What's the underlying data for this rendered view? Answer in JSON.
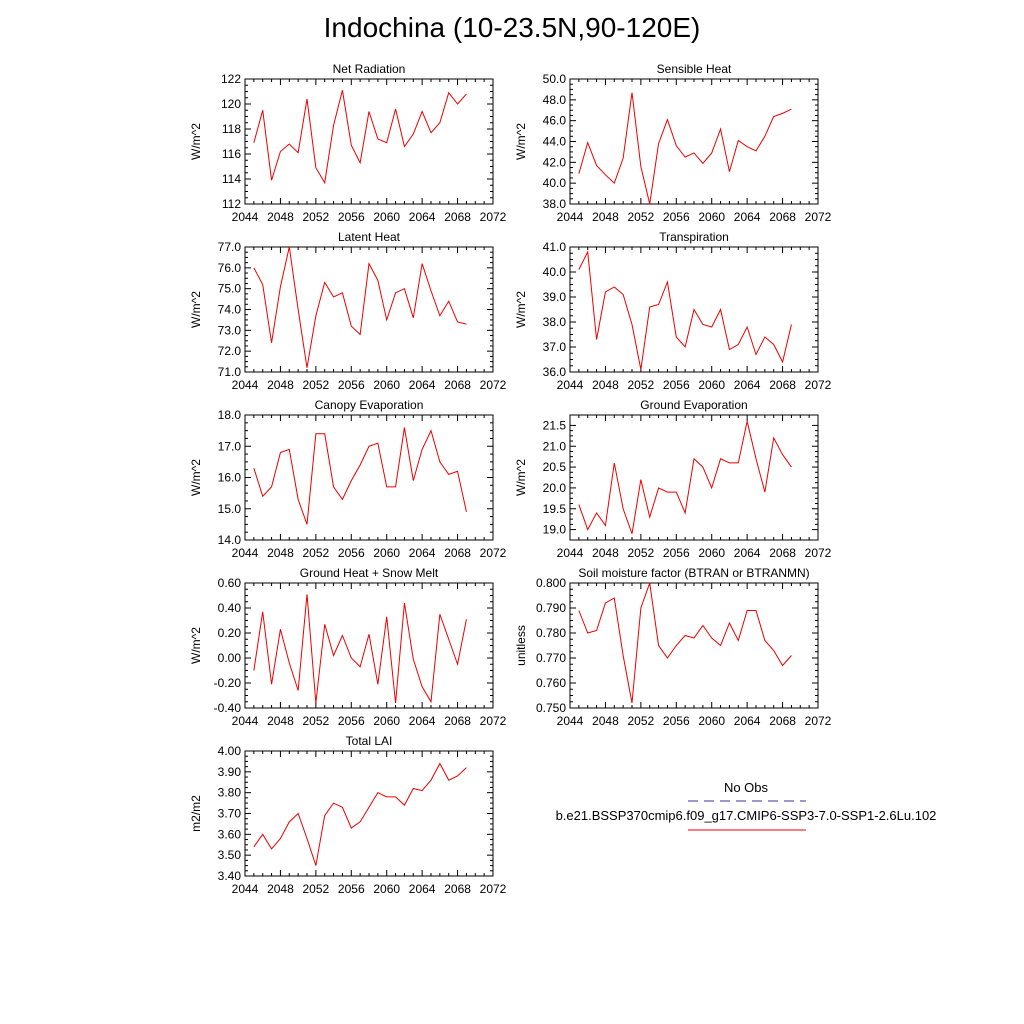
{
  "title": "Indochina (10-23.5N,90-120E)",
  "legend": {
    "obs_label": "No Obs",
    "obs_color": "#3333aa",
    "case_label": "b.e21.BSSP370cmip6.f09_g17.CMIP6-SSP3-7.0-SSP1-2.6Lu.102",
    "case_color": "#ee0000"
  },
  "chart_data": [
    {
      "type": "line",
      "title": "Net Radiation",
      "ylabel": "W/m^2",
      "xlim": [
        2044,
        2072
      ],
      "ylim": [
        112,
        122
      ],
      "xticks": [
        "2044",
        "2048",
        "2052",
        "2056",
        "2060",
        "2064",
        "2068",
        "2072"
      ],
      "yticks": [
        "112",
        "114",
        "116",
        "118",
        "120",
        "122"
      ],
      "x": [
        2045,
        2046,
        2047,
        2048,
        2049,
        2050,
        2051,
        2052,
        2053,
        2054,
        2055,
        2056,
        2057,
        2058,
        2059,
        2060,
        2061,
        2062,
        2063,
        2064,
        2065,
        2066,
        2067,
        2068,
        2069
      ],
      "series": [
        {
          "values": [
            116.9,
            119.5,
            113.9,
            116.2,
            116.8,
            116.1,
            120.4,
            114.9,
            113.7,
            118.3,
            121.1,
            116.7,
            115.3,
            119.4,
            117.2,
            116.9,
            119.6,
            116.6,
            117.6,
            119.4,
            117.7,
            118.5,
            120.9,
            120.0,
            120.8
          ]
        }
      ]
    },
    {
      "type": "line",
      "title": "Sensible Heat",
      "ylabel": "W/m^2",
      "xlim": [
        2044,
        2072
      ],
      "ylim": [
        38.0,
        50.0
      ],
      "xticks": [
        "2044",
        "2048",
        "2052",
        "2056",
        "2060",
        "2064",
        "2068",
        "2072"
      ],
      "yticks": [
        "38.0",
        "40.0",
        "42.0",
        "44.0",
        "46.0",
        "48.0",
        "50.0"
      ],
      "x": [
        2045,
        2046,
        2047,
        2048,
        2049,
        2050,
        2051,
        2052,
        2053,
        2054,
        2055,
        2056,
        2057,
        2058,
        2059,
        2060,
        2061,
        2062,
        2063,
        2064,
        2065,
        2066,
        2067,
        2068,
        2069
      ],
      "series": [
        {
          "values": [
            40.9,
            43.9,
            41.7,
            40.8,
            40.0,
            42.4,
            48.7,
            41.6,
            38.0,
            43.8,
            46.1,
            43.6,
            42.5,
            42.9,
            41.9,
            42.9,
            45.2,
            41.1,
            44.1,
            43.5,
            43.1,
            44.5,
            46.4,
            46.7,
            47.1
          ]
        }
      ]
    },
    {
      "type": "line",
      "title": "Latent Heat",
      "ylabel": "W/m^2",
      "xlim": [
        2044,
        2072
      ],
      "ylim": [
        71.0,
        77.0
      ],
      "xticks": [
        "2044",
        "2048",
        "2052",
        "2056",
        "2060",
        "2064",
        "2068",
        "2072"
      ],
      "yticks": [
        "71.0",
        "72.0",
        "73.0",
        "74.0",
        "75.0",
        "76.0",
        "77.0"
      ],
      "x": [
        2045,
        2046,
        2047,
        2048,
        2049,
        2050,
        2051,
        2052,
        2053,
        2054,
        2055,
        2056,
        2057,
        2058,
        2059,
        2060,
        2061,
        2062,
        2063,
        2064,
        2065,
        2066,
        2067,
        2068,
        2069
      ],
      "series": [
        {
          "values": [
            76.0,
            75.2,
            72.4,
            75.1,
            77.0,
            74.0,
            71.2,
            73.7,
            75.3,
            74.6,
            74.8,
            73.2,
            72.8,
            76.2,
            75.4,
            73.5,
            74.8,
            75.0,
            73.6,
            76.2,
            74.9,
            73.7,
            74.4,
            73.4,
            73.3
          ]
        }
      ]
    },
    {
      "type": "line",
      "title": "Transpiration",
      "ylabel": "W/m^2",
      "xlim": [
        2044,
        2072
      ],
      "ylim": [
        36.0,
        41.0
      ],
      "xticks": [
        "2044",
        "2048",
        "2052",
        "2056",
        "2060",
        "2064",
        "2068",
        "2072"
      ],
      "yticks": [
        "36.0",
        "37.0",
        "38.0",
        "39.0",
        "40.0",
        "41.0"
      ],
      "x": [
        2045,
        2046,
        2047,
        2048,
        2049,
        2050,
        2051,
        2052,
        2053,
        2054,
        2055,
        2056,
        2057,
        2058,
        2059,
        2060,
        2061,
        2062,
        2063,
        2064,
        2065,
        2066,
        2067,
        2068,
        2069
      ],
      "series": [
        {
          "values": [
            40.1,
            40.8,
            37.3,
            39.2,
            39.4,
            39.1,
            37.9,
            36.1,
            38.6,
            38.7,
            39.6,
            37.4,
            37.0,
            38.5,
            37.9,
            37.8,
            38.5,
            36.9,
            37.1,
            37.8,
            36.7,
            37.4,
            37.1,
            36.4,
            37.9
          ]
        }
      ]
    },
    {
      "type": "line",
      "title": "Canopy Evaporation",
      "ylabel": "W/m^2",
      "xlim": [
        2044,
        2072
      ],
      "ylim": [
        14.0,
        18.0
      ],
      "xticks": [
        "2044",
        "2048",
        "2052",
        "2056",
        "2060",
        "2064",
        "2068",
        "2072"
      ],
      "yticks": [
        "14.0",
        "15.0",
        "16.0",
        "17.0",
        "18.0"
      ],
      "x": [
        2045,
        2046,
        2047,
        2048,
        2049,
        2050,
        2051,
        2052,
        2053,
        2054,
        2055,
        2056,
        2057,
        2058,
        2059,
        2060,
        2061,
        2062,
        2063,
        2064,
        2065,
        2066,
        2067,
        2068,
        2069
      ],
      "series": [
        {
          "values": [
            16.3,
            15.4,
            15.7,
            16.8,
            16.9,
            15.3,
            14.5,
            17.4,
            17.4,
            15.7,
            15.3,
            15.9,
            16.4,
            17.0,
            17.1,
            15.7,
            15.7,
            17.6,
            15.9,
            16.9,
            17.5,
            16.5,
            16.1,
            16.2,
            14.9
          ]
        }
      ]
    },
    {
      "type": "line",
      "title": "Ground Evaporation",
      "ylabel": "W/m^2",
      "xlim": [
        2044,
        2072
      ],
      "ylim": [
        18.75,
        21.75
      ],
      "xticks": [
        "2044",
        "2048",
        "2052",
        "2056",
        "2060",
        "2064",
        "2068",
        "2072"
      ],
      "yticks": [
        "19.0",
        "19.5",
        "20.0",
        "20.5",
        "21.0",
        "21.5"
      ],
      "x": [
        2045,
        2046,
        2047,
        2048,
        2049,
        2050,
        2051,
        2052,
        2053,
        2054,
        2055,
        2056,
        2057,
        2058,
        2059,
        2060,
        2061,
        2062,
        2063,
        2064,
        2065,
        2066,
        2067,
        2068,
        2069
      ],
      "series": [
        {
          "values": [
            19.6,
            19.0,
            19.4,
            19.1,
            20.6,
            19.5,
            18.9,
            20.2,
            19.3,
            20.0,
            19.9,
            19.9,
            19.4,
            20.7,
            20.5,
            20.0,
            20.7,
            20.6,
            20.6,
            21.6,
            20.7,
            19.9,
            21.2,
            20.8,
            20.5
          ]
        }
      ]
    },
    {
      "type": "line",
      "title": "Ground Heat + Snow Melt",
      "ylabel": "W/m^2",
      "xlim": [
        2044,
        2072
      ],
      "ylim": [
        -0.4,
        0.6
      ],
      "xticks": [
        "2044",
        "2048",
        "2052",
        "2056",
        "2060",
        "2064",
        "2068",
        "2072"
      ],
      "yticks": [
        "-0.40",
        "-0.20",
        "0.00",
        "0.20",
        "0.40",
        "0.60"
      ],
      "x": [
        2045,
        2046,
        2047,
        2048,
        2049,
        2050,
        2051,
        2052,
        2053,
        2054,
        2055,
        2056,
        2057,
        2058,
        2059,
        2060,
        2061,
        2062,
        2063,
        2064,
        2065,
        2066,
        2067,
        2068,
        2069
      ],
      "series": [
        {
          "values": [
            -0.1,
            0.37,
            -0.21,
            0.23,
            -0.04,
            -0.26,
            0.51,
            -0.36,
            0.27,
            0.02,
            0.18,
            0.0,
            -0.07,
            0.19,
            -0.21,
            0.33,
            -0.36,
            0.44,
            -0.01,
            -0.23,
            -0.35,
            0.35,
            0.15,
            -0.05,
            0.31
          ]
        }
      ]
    },
    {
      "type": "line",
      "title": "Soil moisture factor (BTRAN or BTRANMN)",
      "ylabel": "unitless",
      "xlim": [
        2044,
        2072
      ],
      "ylim": [
        0.75,
        0.8
      ],
      "xticks": [
        "2044",
        "2048",
        "2052",
        "2056",
        "2060",
        "2064",
        "2068",
        "2072"
      ],
      "yticks": [
        "0.750",
        "0.760",
        "0.770",
        "0.780",
        "0.790",
        "0.800"
      ],
      "x": [
        2045,
        2046,
        2047,
        2048,
        2049,
        2050,
        2051,
        2052,
        2053,
        2054,
        2055,
        2056,
        2057,
        2058,
        2059,
        2060,
        2061,
        2062,
        2063,
        2064,
        2065,
        2066,
        2067,
        2068,
        2069
      ],
      "series": [
        {
          "values": [
            0.789,
            0.78,
            0.781,
            0.792,
            0.794,
            0.771,
            0.752,
            0.79,
            0.8,
            0.775,
            0.77,
            0.775,
            0.779,
            0.778,
            0.783,
            0.778,
            0.775,
            0.784,
            0.777,
            0.789,
            0.789,
            0.777,
            0.773,
            0.767,
            0.771
          ]
        }
      ]
    },
    {
      "type": "line",
      "title": "Total LAI",
      "ylabel": "m2/m2",
      "xlim": [
        2044,
        2072
      ],
      "ylim": [
        3.4,
        4.0
      ],
      "xticks": [
        "2044",
        "2048",
        "2052",
        "2056",
        "2060",
        "2064",
        "2068",
        "2072"
      ],
      "yticks": [
        "3.40",
        "3.50",
        "3.60",
        "3.70",
        "3.80",
        "3.90",
        "4.00"
      ],
      "x": [
        2045,
        2046,
        2047,
        2048,
        2049,
        2050,
        2051,
        2052,
        2053,
        2054,
        2055,
        2056,
        2057,
        2058,
        2059,
        2060,
        2061,
        2062,
        2063,
        2064,
        2065,
        2066,
        2067,
        2068,
        2069
      ],
      "series": [
        {
          "values": [
            3.54,
            3.6,
            3.53,
            3.58,
            3.66,
            3.7,
            3.58,
            3.45,
            3.69,
            3.75,
            3.73,
            3.63,
            3.66,
            3.73,
            3.8,
            3.78,
            3.78,
            3.74,
            3.82,
            3.81,
            3.86,
            3.94,
            3.86,
            3.88,
            3.92
          ]
        }
      ]
    }
  ]
}
